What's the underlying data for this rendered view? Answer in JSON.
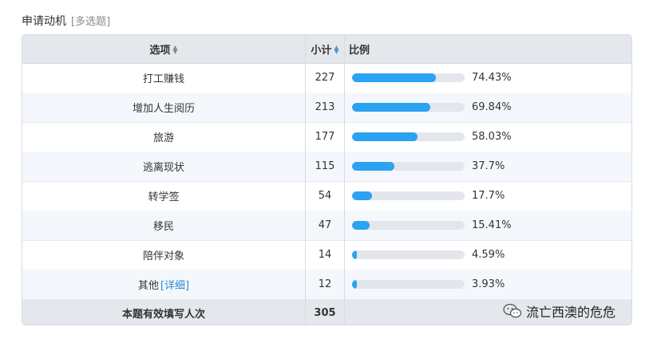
{
  "question": {
    "title": "申请动机",
    "type_tag": "[多选题]"
  },
  "table": {
    "header": {
      "option": "选项",
      "count": "小计",
      "ratio": "比例"
    },
    "rows": [
      {
        "option": "打工赚钱",
        "count": "227",
        "percent": "74.43%",
        "fraction": 0.7443
      },
      {
        "option": "增加人生阅历",
        "count": "213",
        "percent": "69.84%",
        "fraction": 0.6984
      },
      {
        "option": "旅游",
        "count": "177",
        "percent": "58.03%",
        "fraction": 0.5803
      },
      {
        "option": "逃离现状",
        "count": "115",
        "percent": "37.7%",
        "fraction": 0.377
      },
      {
        "option": "转学签",
        "count": "54",
        "percent": "17.7%",
        "fraction": 0.177
      },
      {
        "option": "移民",
        "count": "47",
        "percent": "15.41%",
        "fraction": 0.1541
      },
      {
        "option": "陪伴对象",
        "count": "14",
        "percent": "4.59%",
        "fraction": 0.0459
      },
      {
        "option": "其他",
        "count": "12",
        "percent": "3.93%",
        "fraction": 0.0393,
        "link": "[详细]"
      }
    ],
    "footer": {
      "label": "本题有效填写人次",
      "count": "305"
    }
  },
  "watermark": {
    "text": "流亡西澳的危危",
    "icon": "wechat-icon"
  },
  "colors": {
    "bar_fill": "#2ba2f2",
    "bar_track": "#e3e6ea",
    "header_bg": "#e4e8ed",
    "link": "#2a8bd8"
  }
}
